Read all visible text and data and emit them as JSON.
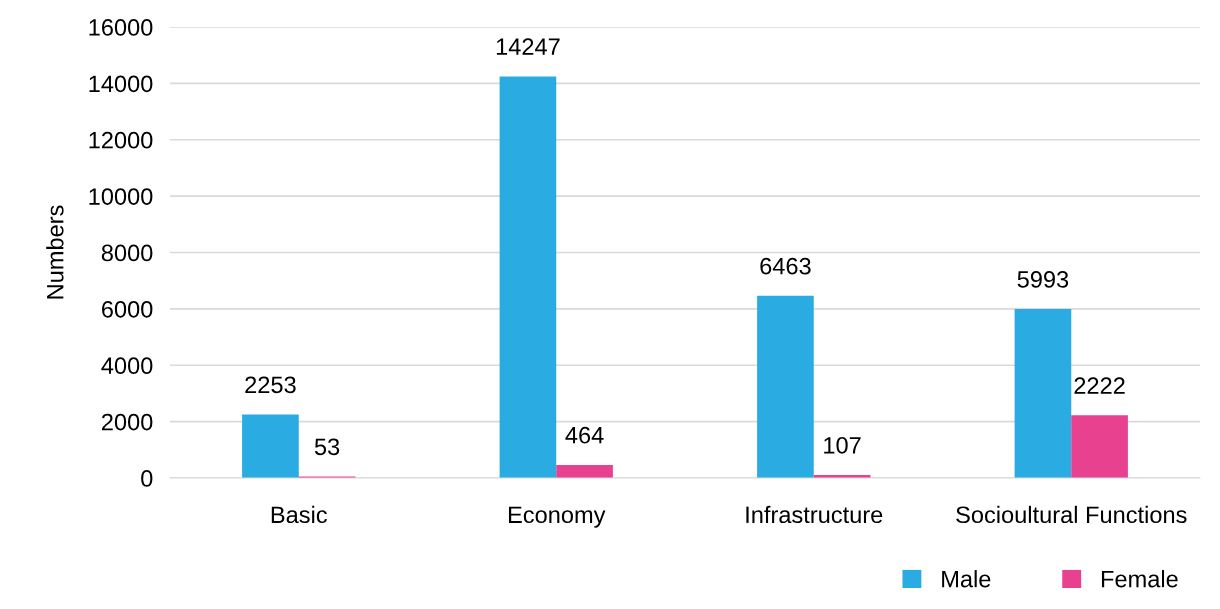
{
  "chart_data": {
    "type": "bar",
    "ylabel": "Numbers",
    "categories": [
      "Basic",
      "Economy",
      "Infrastructure",
      "Socioultural Functions"
    ],
    "series": [
      {
        "name": "Male",
        "color": "#2aace2",
        "values": [
          2253,
          14247,
          6463,
          5993
        ]
      },
      {
        "name": "Female",
        "color": "#e8418f",
        "values": [
          53,
          464,
          107,
          2222
        ]
      }
    ],
    "ylim": [
      0,
      16000
    ],
    "yticks": [
      0,
      2000,
      4000,
      6000,
      8000,
      10000,
      12000,
      14000,
      16000
    ],
    "grid": "y",
    "legend": "bottom right",
    "data_labels": true
  }
}
